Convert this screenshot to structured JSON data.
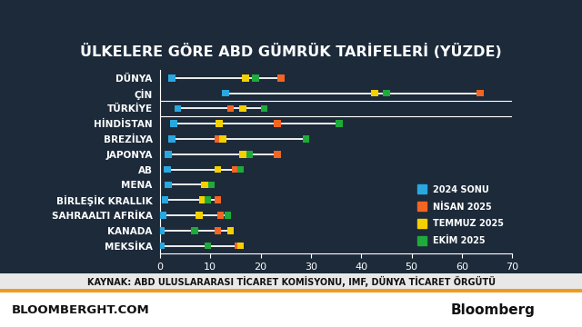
{
  "chart_data": {
    "type": "dot",
    "orientation": "horizontal",
    "title": "ÜLKELERE GÖRE ABD GÜMRÜK TARİFELERİ (YÜZDE)",
    "categories": [
      "DÜNYA",
      "ÇİN",
      "TÜRKİYE",
      "HİNDİSTAN",
      "BREZİLYA",
      "JAPONYA",
      "AB",
      "MENA",
      "BİRLEŞİK KRALLIK",
      "SAHRAALTI AFRİKA",
      "KANADA",
      "MEKSİKA"
    ],
    "series": [
      {
        "name": "2024 SONU",
        "color": "#29a8e0",
        "values": [
          2.4,
          13,
          3.5,
          2.7,
          2.4,
          1.6,
          1.5,
          1.6,
          1.0,
          0.5,
          0.3,
          0.3
        ]
      },
      {
        "name": "NİSAN 2025",
        "color": "#f26522",
        "values": [
          24,
          63.6,
          14,
          23.3,
          11.5,
          23.3,
          15,
          9.8,
          11.5,
          12,
          11.5,
          15.5
        ]
      },
      {
        "name": "TEMMUZ 2025",
        "color": "#f5d000",
        "values": [
          17,
          42.7,
          16.5,
          11.8,
          12.5,
          16.5,
          11.5,
          8.9,
          8.5,
          7.8,
          14,
          16
        ]
      },
      {
        "name": "EKİM 2025",
        "color": "#1faa3c",
        "values": [
          19,
          45,
          20.7,
          35.6,
          29,
          17.8,
          16,
          10.2,
          9.5,
          13.5,
          6.9,
          9.5
        ]
      }
    ],
    "xlim": [
      0,
      70
    ],
    "xticks": [
      0,
      10,
      20,
      30,
      40,
      50,
      60,
      70
    ],
    "grid": false,
    "legend": "lower right",
    "marker": "square",
    "source": "KAYNAK: ABD ULUSLARARASI TİCARET KOMİSYONU, IMF, DÜNYA TİCARET ÖRGÜTÜ",
    "footer": [
      "BLOOMBERGHT.COM",
      "Bloomberg"
    ]
  }
}
